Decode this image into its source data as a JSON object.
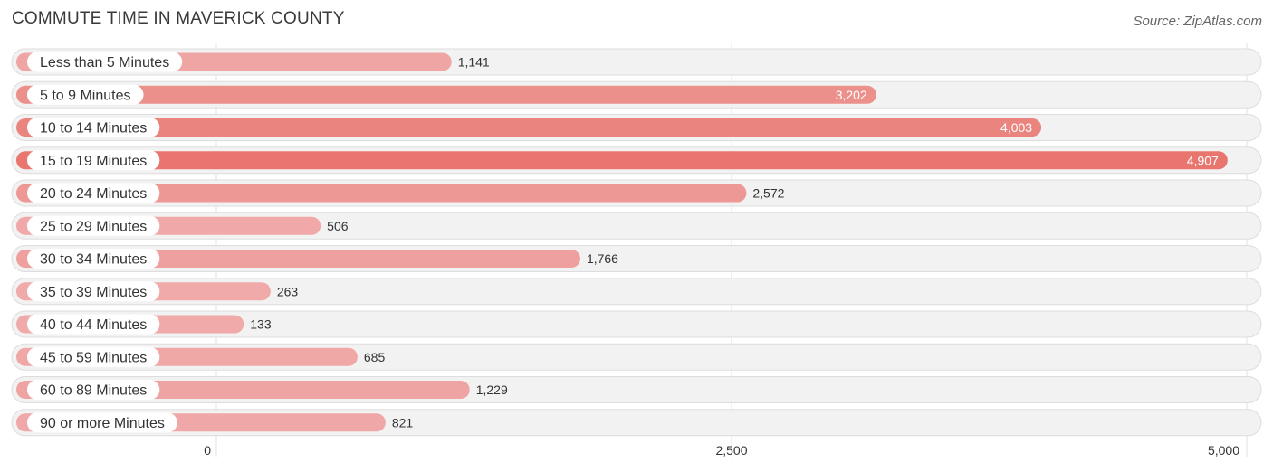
{
  "header": {
    "title": "COMMUTE TIME IN MAVERICK COUNTY",
    "source": "Source: ZipAtlas.com"
  },
  "chart_data": {
    "type": "bar",
    "orientation": "horizontal",
    "title": "COMMUTE TIME IN MAVERICK COUNTY",
    "categories": [
      "Less than 5 Minutes",
      "5 to 9 Minutes",
      "10 to 14 Minutes",
      "15 to 19 Minutes",
      "20 to 24 Minutes",
      "25 to 29 Minutes",
      "30 to 34 Minutes",
      "35 to 39 Minutes",
      "40 to 44 Minutes",
      "45 to 59 Minutes",
      "60 to 89 Minutes",
      "90 or more Minutes"
    ],
    "values": [
      1141,
      3202,
      4003,
      4907,
      2572,
      506,
      1766,
      263,
      133,
      685,
      1229,
      821
    ],
    "value_labels": [
      "1,141",
      "3,202",
      "4,003",
      "4,907",
      "2,572",
      "506",
      "1,766",
      "263",
      "133",
      "685",
      "1,229",
      "821"
    ],
    "xlim": [
      0,
      5000
    ],
    "xticks": [
      0,
      2500,
      5000
    ],
    "xtick_labels": [
      "0",
      "2,500",
      "5,000"
    ],
    "xlabel": "",
    "ylabel": "",
    "grid": true,
    "colors": {
      "bar_light": "#f0aaaa",
      "bar_dark": "#e8766f"
    }
  }
}
